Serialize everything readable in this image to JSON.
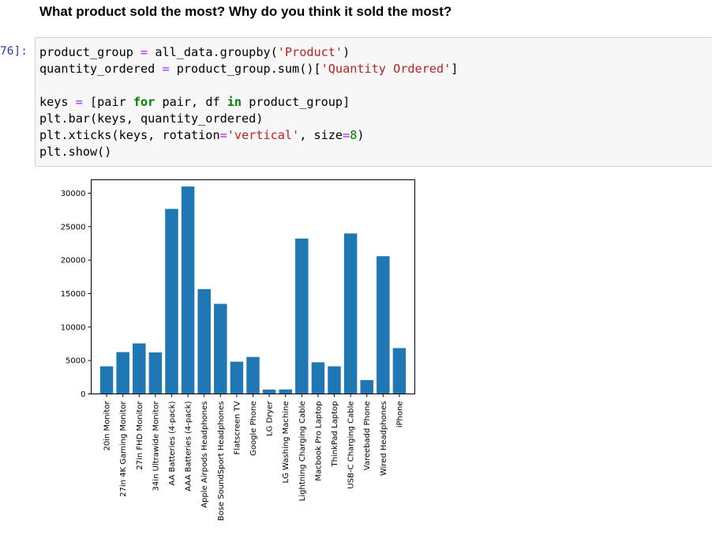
{
  "question": "What product sold the most? Why do you think it sold the most?",
  "cell": {
    "prompt": "76]:",
    "code_lines": [
      "product_group = all_data.groupby('Product')",
      "quantity_ordered = product_group.sum()['Quantity Ordered']",
      "",
      "keys = [pair for pair, df in product_group]",
      "plt.bar(keys, quantity_ordered)",
      "plt.xticks(keys, rotation='vertical', size=8)",
      "plt.show()"
    ]
  },
  "colors": {
    "bar": "#1f77b4",
    "prompt": "#303f9f",
    "keyword": "#008000",
    "string": "#ba2121"
  },
  "chart_data": {
    "type": "bar",
    "categories": [
      "20in Monitor",
      "27in 4K Gaming Monitor",
      "27in FHD Monitor",
      "34in Ultrawide Monitor",
      "AA Batteries (4-pack)",
      "AAA Batteries (4-pack)",
      "Apple Airpods Headphones",
      "Bose SoundSport Headphones",
      "Flatscreen TV",
      "Google Phone",
      "LG Dryer",
      "LG Washing Machine",
      "Lightning Charging Cable",
      "Macbook Pro Laptop",
      "ThinkPad Laptop",
      "USB-C Charging Cable",
      "Vareebadd Phone",
      "Wired Headphones",
      "iPhone"
    ],
    "values": [
      4130,
      6250,
      7550,
      6200,
      27650,
      31000,
      15660,
      13460,
      4820,
      5530,
      650,
      670,
      23220,
      4730,
      4130,
      23980,
      2070,
      20580,
      6850
    ],
    "yticks": [
      0,
      5000,
      10000,
      15000,
      20000,
      25000,
      30000
    ],
    "ylim": [
      0,
      32000
    ],
    "title": "",
    "xlabel": "",
    "ylabel": "",
    "grid": false
  }
}
